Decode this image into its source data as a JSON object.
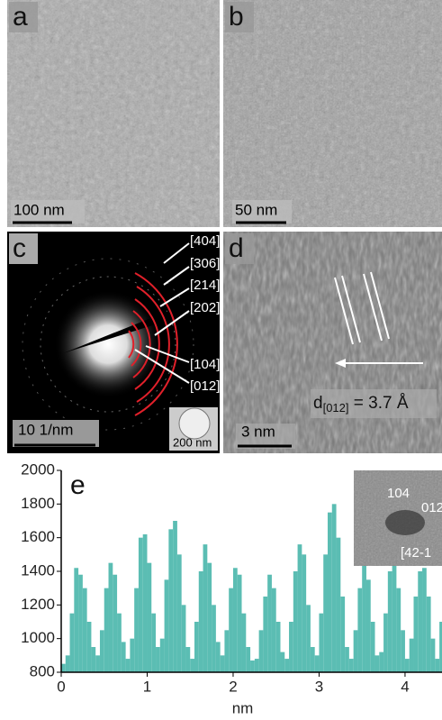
{
  "panels": {
    "a": {
      "label": "a",
      "scale_bar": "100 nm"
    },
    "b": {
      "label": "b",
      "scale_bar": "50 nm"
    },
    "c": {
      "label": "c",
      "scale_bar": "10 1/nm",
      "inset_scale_bar": "200 nm",
      "ring_labels": [
        "[404]",
        "[306]",
        "[214]",
        "[202]",
        "[104]",
        "[012]"
      ]
    },
    "d": {
      "label": "d",
      "scale_bar": "3 nm",
      "spacing": [
        "d",
        "[012]",
        " = 3.7 Å"
      ]
    },
    "e": {
      "label": "e",
      "inset_labels": [
        "104",
        "012",
        "[42-1"
      ]
    }
  },
  "chart_data": {
    "type": "bar",
    "color": "#5bbdb3",
    "xlabel": "nm",
    "x": [
      0.0,
      0.05,
      0.1,
      0.15,
      0.2,
      0.25,
      0.3,
      0.35,
      0.4,
      0.45,
      0.5,
      0.55,
      0.6,
      0.65,
      0.7,
      0.75,
      0.8,
      0.85,
      0.9,
      0.95,
      1.0,
      1.05,
      1.1,
      1.15,
      1.2,
      1.25,
      1.3,
      1.35,
      1.4,
      1.45,
      1.5,
      1.55,
      1.6,
      1.65,
      1.7,
      1.75,
      1.8,
      1.85,
      1.9,
      1.95,
      2.0,
      2.05,
      2.1,
      2.15,
      2.2,
      2.25,
      2.3,
      2.35,
      2.4,
      2.45,
      2.5,
      2.55,
      2.6,
      2.65,
      2.7,
      2.75,
      2.8,
      2.85,
      2.9,
      2.95,
      3.0,
      3.05,
      3.1,
      3.15,
      3.2,
      3.25,
      3.3,
      3.35,
      3.4,
      3.45,
      3.5,
      3.55,
      3.6,
      3.65,
      3.7,
      3.75,
      3.8,
      3.85,
      3.9,
      3.95,
      4.0,
      4.05,
      4.1,
      4.15,
      4.2,
      4.25,
      4.3,
      4.35,
      4.4
    ],
    "values": [
      850,
      900,
      1150,
      1420,
      1380,
      1300,
      1100,
      950,
      900,
      1050,
      1300,
      1450,
      1380,
      1150,
      980,
      880,
      1000,
      1300,
      1600,
      1620,
      1450,
      1150,
      950,
      1000,
      1350,
      1650,
      1700,
      1500,
      1200,
      950,
      880,
      1100,
      1400,
      1560,
      1450,
      1200,
      980,
      900,
      1050,
      1300,
      1420,
      1380,
      1150,
      950,
      870,
      880,
      1050,
      1250,
      1380,
      1300,
      1100,
      920,
      880,
      1100,
      1400,
      1560,
      1500,
      1200,
      950,
      900,
      1150,
      1500,
      1750,
      1800,
      1600,
      1250,
      950,
      880,
      1050,
      1300,
      1450,
      1350,
      1100,
      900,
      920,
      1150,
      1400,
      1450,
      1300,
      1050,
      880,
      1000,
      1250,
      1400,
      1420,
      1250,
      1000,
      880,
      1100
    ],
    "xlim": [
      0,
      4.43
    ],
    "ylim": [
      800,
      2000
    ],
    "xticks": [
      0,
      1,
      2,
      3,
      4
    ],
    "yticks": [
      800,
      1000,
      1200,
      1400,
      1600,
      1800,
      2000
    ]
  }
}
